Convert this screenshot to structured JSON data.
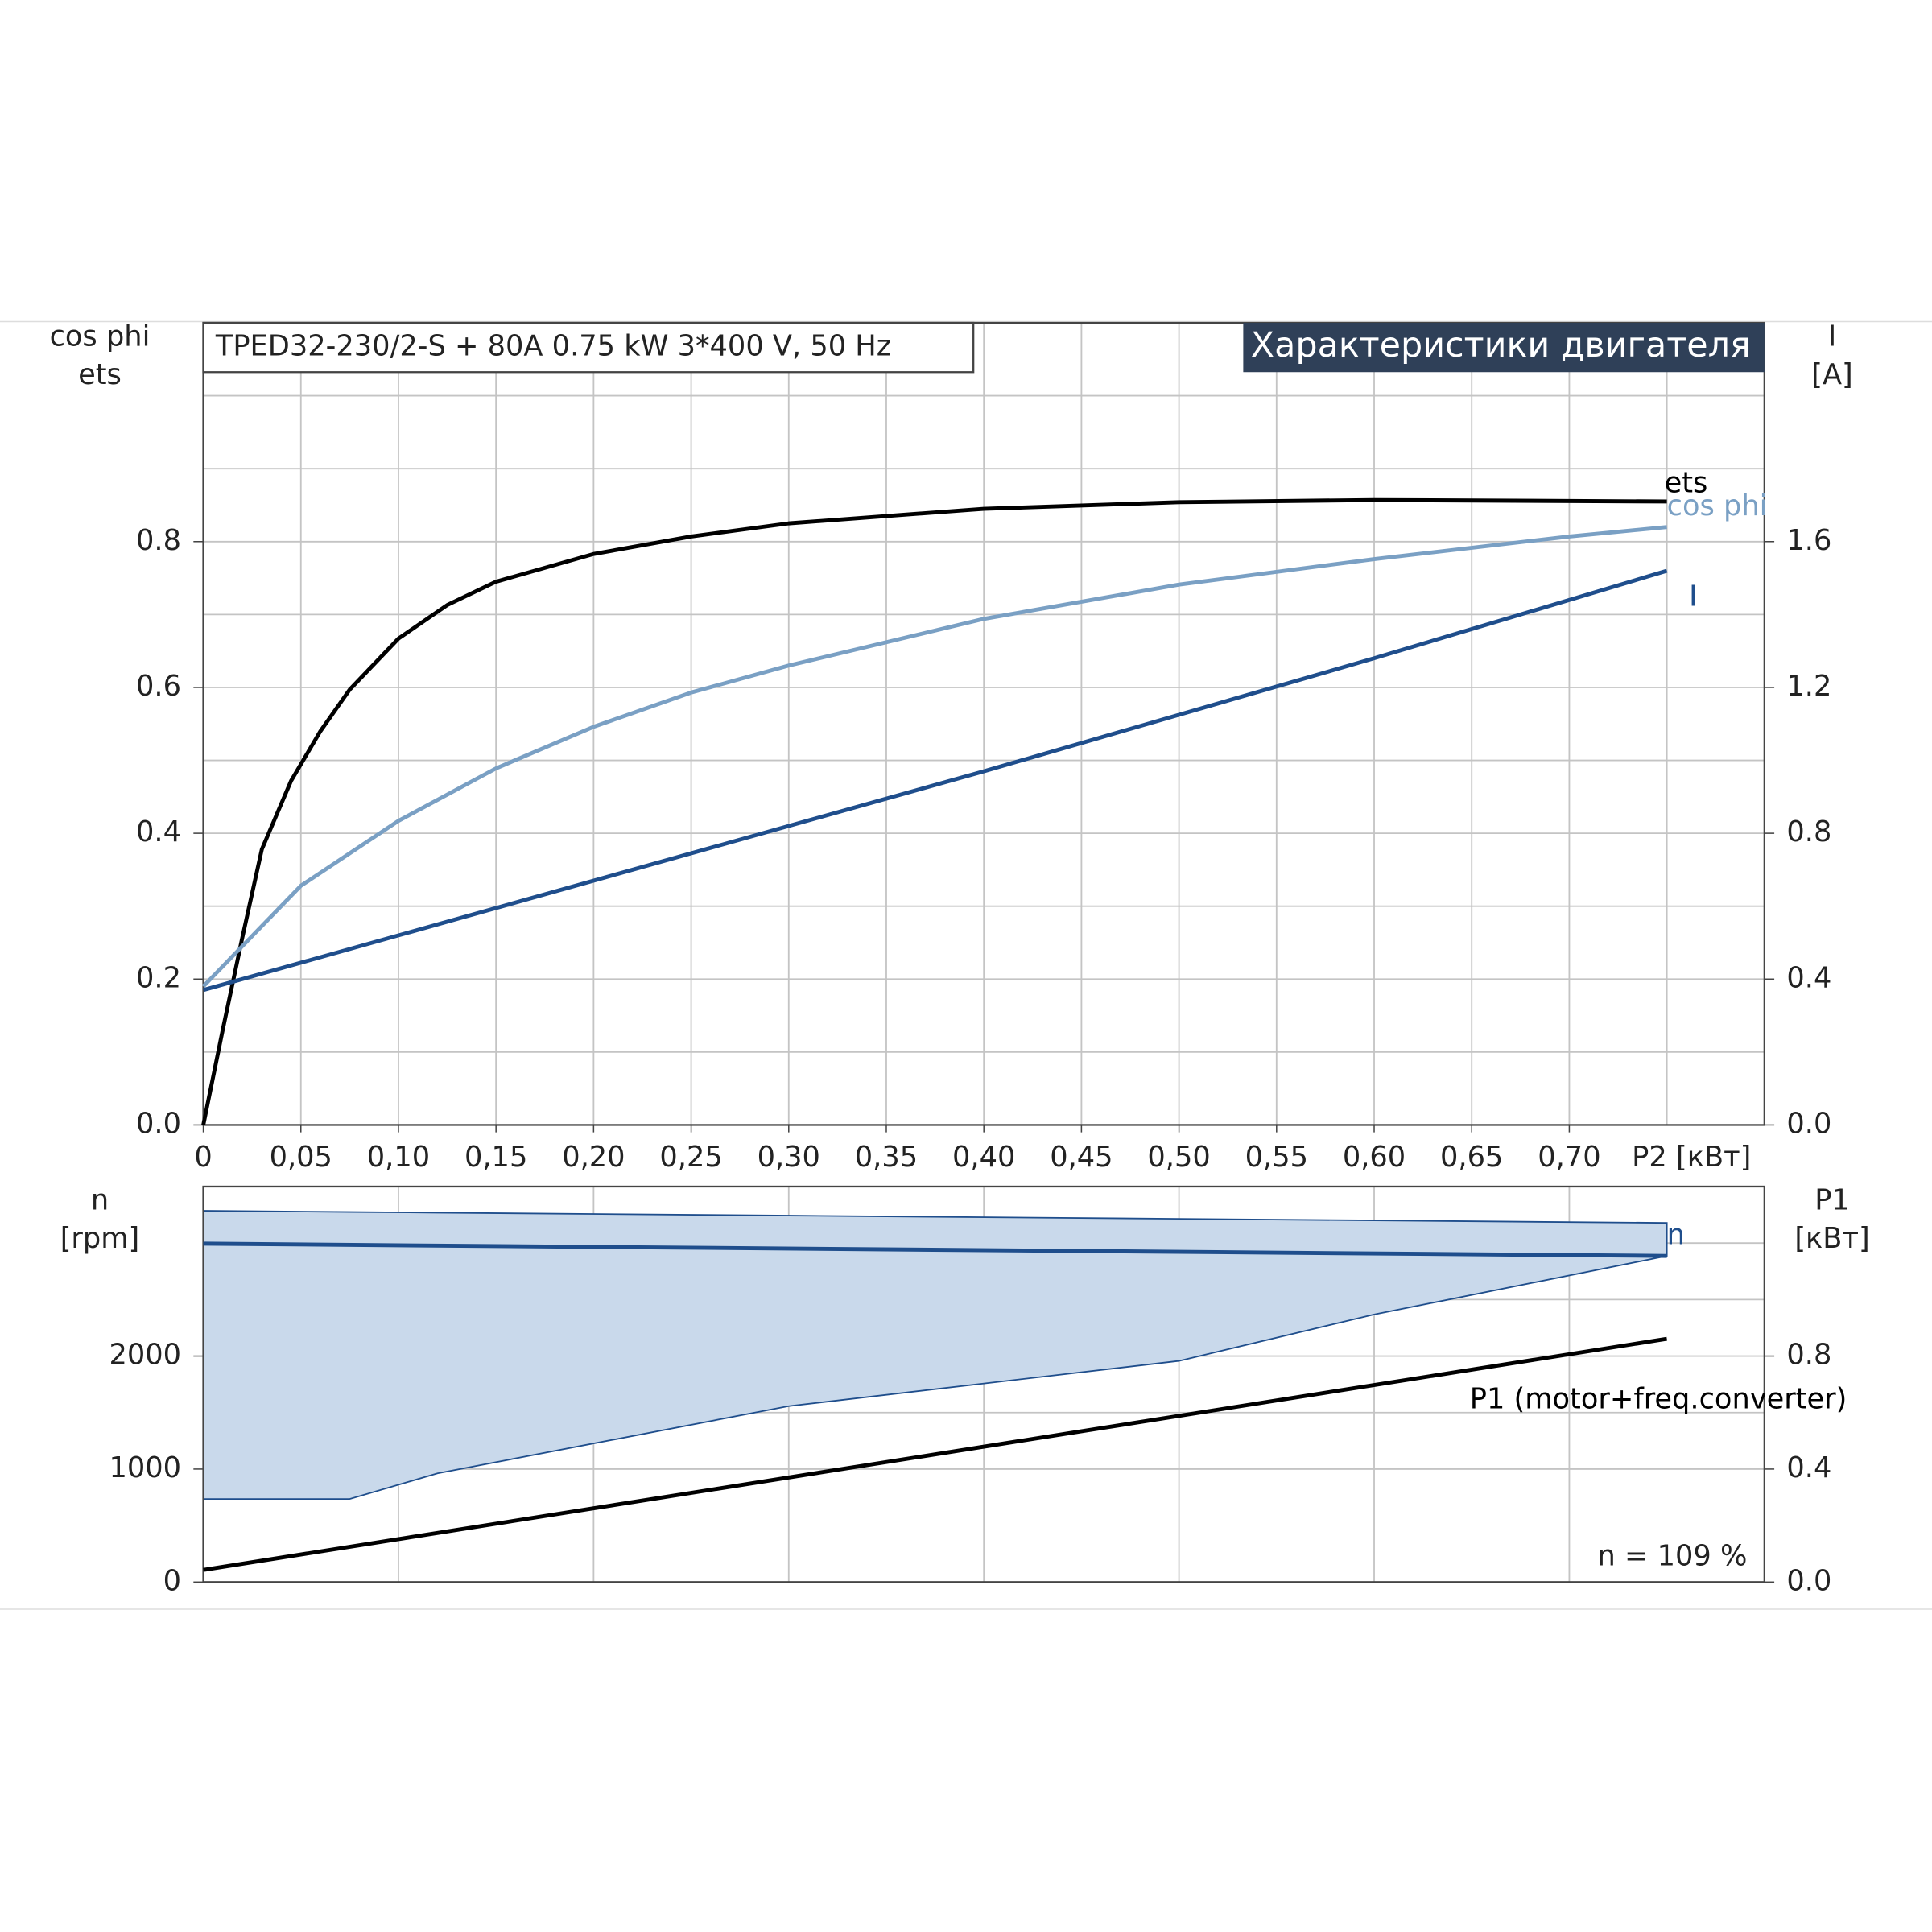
{
  "chart_data": [
    {
      "type": "line",
      "title": "TPED32-230/2-S + 80A   0.75 kW   3*400 V, 50 Hz",
      "subtitle": "Характеристики двигателя",
      "ylabel": [
        "cos phi",
        "ets"
      ],
      "y2label": [
        "I",
        "[A]"
      ],
      "xlabel": "P2 [кВт]",
      "xlim": [
        0,
        0.8
      ],
      "xticks": [
        0,
        {
          "value": 0.05,
          "label": "0,05"
        },
        {
          "value": 0.1,
          "label": "0,10"
        },
        {
          "value": 0.15,
          "label": "0,15"
        },
        {
          "value": 0.2,
          "label": "0,20"
        },
        {
          "value": 0.25,
          "label": "0,25"
        },
        {
          "value": 0.3,
          "label": "0,30"
        },
        {
          "value": 0.35,
          "label": "0,35"
        },
        {
          "value": 0.4,
          "label": "0,40"
        },
        {
          "value": 0.45,
          "label": "0,45"
        },
        {
          "value": 0.5,
          "label": "0,50"
        },
        {
          "value": 0.55,
          "label": "0,55"
        },
        {
          "value": 0.6,
          "label": "0,60"
        },
        {
          "value": 0.65,
          "label": "0,65"
        },
        {
          "value": 0.7,
          "label": "0,70"
        }
      ],
      "xgrid": [
        0.05,
        0.1,
        0.15,
        0.2,
        0.25,
        0.3,
        0.35,
        0.4,
        0.45,
        0.5,
        0.55,
        0.6,
        0.65,
        0.7,
        0.75
      ],
      "ylim": [
        0,
        1.1
      ],
      "yticks": [
        {
          "value": 0,
          "label": "0.0"
        },
        0.2,
        0.4,
        0.6,
        0.8
      ],
      "ygrid": [
        0.1,
        0.2,
        0.3,
        0.4,
        0.5,
        0.6,
        0.7,
        0.8,
        0.9,
        1.0
      ],
      "y2lim": [
        0,
        2.2
      ],
      "y2ticks": [
        {
          "value": 0,
          "label": "0.0"
        },
        0.4,
        0.8,
        1.2,
        1.6
      ],
      "grid": true,
      "series": [
        {
          "name": "ets",
          "color": "#000000",
          "x": [
            0,
            0.01,
            0.02,
            0.03,
            0.045,
            0.06,
            0.075,
            0.1,
            0.125,
            0.15,
            0.2,
            0.25,
            0.3,
            0.4,
            0.5,
            0.6,
            0.75
          ],
          "values": [
            0,
            0.131,
            0.257,
            0.378,
            0.472,
            0.54,
            0.597,
            0.667,
            0.713,
            0.745,
            0.783,
            0.807,
            0.825,
            0.845,
            0.854,
            0.857,
            0.855
          ]
        },
        {
          "name": "cos phi",
          "color": "#7aa0c4",
          "x": [
            0,
            0.05,
            0.1,
            0.15,
            0.2,
            0.25,
            0.3,
            0.4,
            0.5,
            0.6,
            0.7,
            0.75
          ],
          "values": [
            0.19,
            0.328,
            0.417,
            0.489,
            0.546,
            0.593,
            0.63,
            0.694,
            0.741,
            0.776,
            0.807,
            0.82
          ]
        },
        {
          "name": "I",
          "color": "#1f4e8c",
          "axis": "y2",
          "x": [
            0,
            0.2,
            0.4,
            0.6,
            0.75
          ],
          "values": [
            0.37,
            0.67,
            0.97,
            1.28,
            1.52
          ]
        }
      ]
    },
    {
      "type": "line",
      "ylabel": [
        "n",
        "[rpm]"
      ],
      "y2label": [
        "P1",
        "[кВт]"
      ],
      "annotation": "n = 109 %",
      "xlim": [
        0,
        0.8
      ],
      "xgrid": [
        0.1,
        0.2,
        0.3,
        0.4,
        0.5,
        0.6,
        0.7
      ],
      "ylim": [
        0,
        3500
      ],
      "yticks": [
        0,
        1000,
        2000
      ],
      "ygrid": [
        1000,
        1500,
        2000,
        2500,
        3000
      ],
      "y2lim": [
        0,
        1.4
      ],
      "y2ticks": [
        {
          "value": 0,
          "label": "0.0"
        },
        0.4,
        0.8
      ],
      "grid": true,
      "band": {
        "color": "#c9d9eb",
        "x": [
          0,
          0.075,
          0.12,
          0.3,
          0.5,
          0.6,
          0.75
        ],
        "upper": [
          3286,
          3275,
          3269,
          3243,
          3214,
          3200,
          3178
        ],
        "lower": [
          735,
          735,
          962,
          1557,
          1957,
          2368,
          2886
        ]
      },
      "series": [
        {
          "name": "n",
          "color": "#1f4e8c",
          "x": [
            0,
            0.75
          ],
          "values": [
            2995,
            2886
          ]
        },
        {
          "name": "P1 (motor+freq.converter)",
          "color": "#000000",
          "axis": "y2",
          "x": [
            0,
            0.75
          ],
          "values": [
            0.043,
            0.861
          ]
        }
      ]
    }
  ]
}
